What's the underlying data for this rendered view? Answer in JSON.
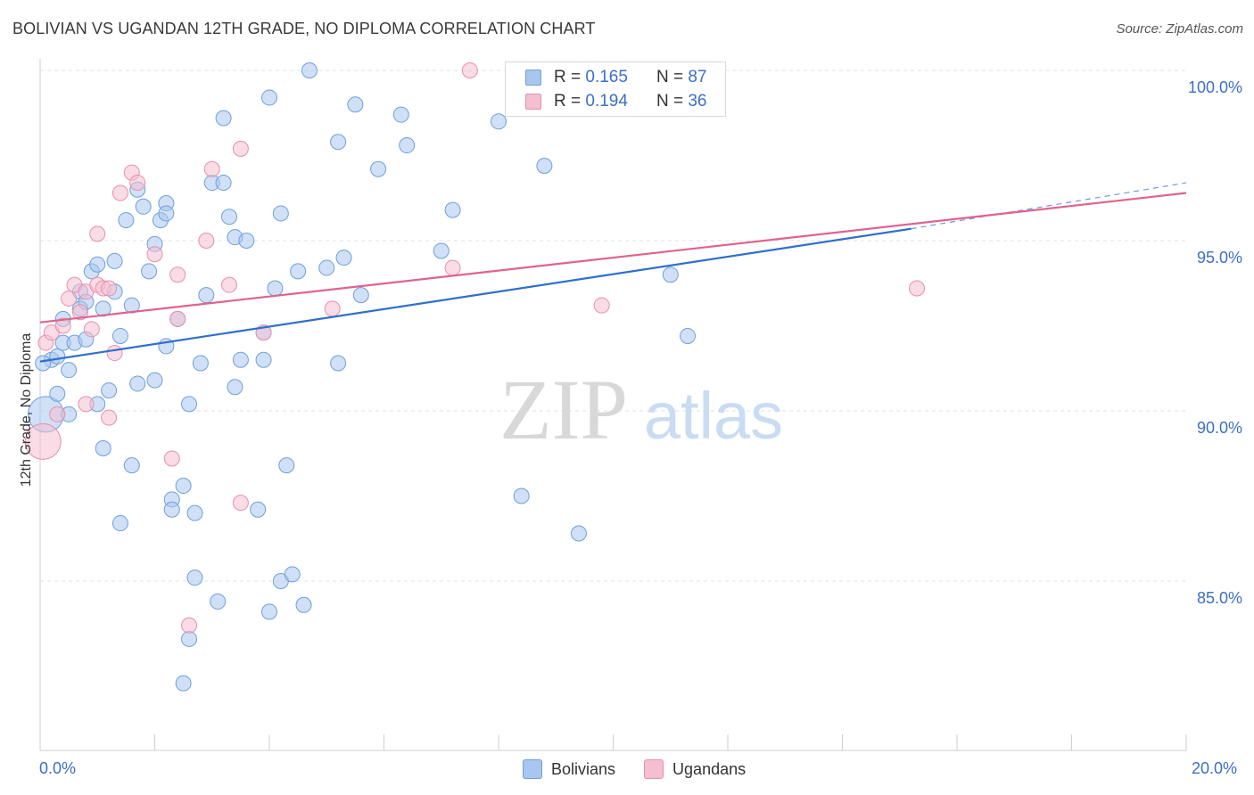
{
  "title": "BOLIVIAN VS UGANDAN 12TH GRADE, NO DIPLOMA CORRELATION CHART",
  "source": "Source: ZipAtlas.com",
  "watermark": {
    "zip": "ZIP",
    "atlas": "atlas"
  },
  "legend": {
    "rows": [
      {
        "r_label": "R = ",
        "r_value": "0.165",
        "n_label": "N = ",
        "n_value": "87"
      },
      {
        "r_label": "R = ",
        "r_value": "0.194",
        "n_label": "N = ",
        "n_value": "36"
      }
    ]
  },
  "bottom_legend": {
    "series1": "Bolivians",
    "series2": "Ugandans"
  },
  "colors": {
    "blue_fill": "#a9c6ee",
    "blue_stroke": "#6f9fdc",
    "blue_line": "#2f6fcd",
    "pink_fill": "#f4bfd0",
    "pink_stroke": "#e88fae",
    "pink_line": "#e0628f",
    "tick_label": "#3a6fc6",
    "grid": "#e2e2e2"
  },
  "chart_data": {
    "type": "scatter",
    "title": "BOLIVIAN VS UGANDAN 12TH GRADE, NO DIPLOMA CORRELATION CHART",
    "xlabel": "",
    "ylabel": "12th Grade, No Diploma",
    "xlim": [
      0,
      20
    ],
    "ylim": [
      80,
      100.5
    ],
    "x_tick_labels": [
      "0.0%",
      "20.0%"
    ],
    "y_ticks": [
      85,
      90,
      95,
      100
    ],
    "y_tick_labels": [
      "85.0%",
      "90.0%",
      "95.0%",
      "100.0%"
    ],
    "grid": true,
    "legend_placement": "top-center",
    "series": [
      {
        "name": "Bolivians",
        "color": "blue",
        "R": 0.165,
        "N": 87,
        "trend": {
          "x0": 0,
          "y0": 91.45,
          "x1": 15.2,
          "y1": 95.35,
          "dashed_to_x": 20,
          "dashed_to_y": 96.7
        },
        "points": [
          [
            0.1,
            89.9
          ],
          [
            0.2,
            91.5
          ],
          [
            0.3,
            91.6
          ],
          [
            0.3,
            90.5
          ],
          [
            0.4,
            92.0
          ],
          [
            0.4,
            92.7
          ],
          [
            0.5,
            89.9
          ],
          [
            0.5,
            91.2
          ],
          [
            0.6,
            92.0
          ],
          [
            0.7,
            93.0
          ],
          [
            0.7,
            93.5
          ],
          [
            0.8,
            92.1
          ],
          [
            0.8,
            93.2
          ],
          [
            0.9,
            94.1
          ],
          [
            1.0,
            94.3
          ],
          [
            1.0,
            90.2
          ],
          [
            1.1,
            88.9
          ],
          [
            1.1,
            93.0
          ],
          [
            1.2,
            90.6
          ],
          [
            1.3,
            93.5
          ],
          [
            1.3,
            94.4
          ],
          [
            1.4,
            86.7
          ],
          [
            1.4,
            92.2
          ],
          [
            1.5,
            95.6
          ],
          [
            1.6,
            93.1
          ],
          [
            1.6,
            88.4
          ],
          [
            1.7,
            96.5
          ],
          [
            1.7,
            90.8
          ],
          [
            1.8,
            96.0
          ],
          [
            1.9,
            94.1
          ],
          [
            2.0,
            94.9
          ],
          [
            2.0,
            90.9
          ],
          [
            2.1,
            95.6
          ],
          [
            2.2,
            91.9
          ],
          [
            2.2,
            96.1
          ],
          [
            2.2,
            95.8
          ],
          [
            2.3,
            87.4
          ],
          [
            2.3,
            87.1
          ],
          [
            2.4,
            92.7
          ],
          [
            2.5,
            87.8
          ],
          [
            2.5,
            82.0
          ],
          [
            2.6,
            90.2
          ],
          [
            2.6,
            83.3
          ],
          [
            2.7,
            85.1
          ],
          [
            2.7,
            87.0
          ],
          [
            2.8,
            91.4
          ],
          [
            2.9,
            93.4
          ],
          [
            3.0,
            96.7
          ],
          [
            3.1,
            84.4
          ],
          [
            3.2,
            96.7
          ],
          [
            3.2,
            98.6
          ],
          [
            3.3,
            95.7
          ],
          [
            3.4,
            90.7
          ],
          [
            3.4,
            95.1
          ],
          [
            3.5,
            91.5
          ],
          [
            3.6,
            95.0
          ],
          [
            3.8,
            87.1
          ],
          [
            3.9,
            91.5
          ],
          [
            3.9,
            92.3
          ],
          [
            4.0,
            84.1
          ],
          [
            4.0,
            99.2
          ],
          [
            4.1,
            93.6
          ],
          [
            4.2,
            95.8
          ],
          [
            4.2,
            85.0
          ],
          [
            4.3,
            88.4
          ],
          [
            4.4,
            85.2
          ],
          [
            4.5,
            94.1
          ],
          [
            4.6,
            84.3
          ],
          [
            4.7,
            100.0
          ],
          [
            5.0,
            94.2
          ],
          [
            5.2,
            91.4
          ],
          [
            5.2,
            97.9
          ],
          [
            5.3,
            94.5
          ],
          [
            5.5,
            99.0
          ],
          [
            5.6,
            93.4
          ],
          [
            5.9,
            97.1
          ],
          [
            6.3,
            98.7
          ],
          [
            6.4,
            97.8
          ],
          [
            7.0,
            94.7
          ],
          [
            7.2,
            95.9
          ],
          [
            8.0,
            98.5
          ],
          [
            8.4,
            87.5
          ],
          [
            8.8,
            97.2
          ],
          [
            9.4,
            86.4
          ],
          [
            11.0,
            94.0
          ],
          [
            11.3,
            92.2
          ],
          [
            0.05,
            91.4
          ]
        ]
      },
      {
        "name": "Ugandans",
        "color": "pink",
        "R": 0.194,
        "N": 36,
        "trend": {
          "x0": 0,
          "y0": 92.6,
          "x1": 20,
          "y1": 96.4
        },
        "points": [
          [
            0.05,
            89.1
          ],
          [
            0.1,
            92.0
          ],
          [
            0.2,
            92.3
          ],
          [
            0.3,
            89.9
          ],
          [
            0.4,
            92.5
          ],
          [
            0.5,
            93.3
          ],
          [
            0.6,
            93.7
          ],
          [
            0.7,
            92.9
          ],
          [
            0.8,
            93.5
          ],
          [
            0.8,
            90.2
          ],
          [
            0.9,
            92.4
          ],
          [
            1.0,
            93.7
          ],
          [
            1.0,
            95.2
          ],
          [
            1.1,
            93.6
          ],
          [
            1.2,
            93.6
          ],
          [
            1.2,
            89.8
          ],
          [
            1.3,
            91.7
          ],
          [
            1.4,
            96.4
          ],
          [
            1.6,
            97.0
          ],
          [
            1.7,
            96.7
          ],
          [
            2.0,
            94.6
          ],
          [
            2.3,
            88.6
          ],
          [
            2.4,
            94.0
          ],
          [
            2.4,
            92.7
          ],
          [
            2.6,
            83.7
          ],
          [
            2.9,
            95.0
          ],
          [
            3.0,
            97.1
          ],
          [
            3.3,
            93.7
          ],
          [
            3.5,
            97.7
          ],
          [
            3.5,
            87.3
          ],
          [
            3.9,
            92.3
          ],
          [
            5.1,
            93.0
          ],
          [
            7.2,
            94.2
          ],
          [
            7.5,
            100.0
          ],
          [
            9.8,
            93.1
          ],
          [
            15.3,
            93.6
          ]
        ]
      }
    ]
  }
}
